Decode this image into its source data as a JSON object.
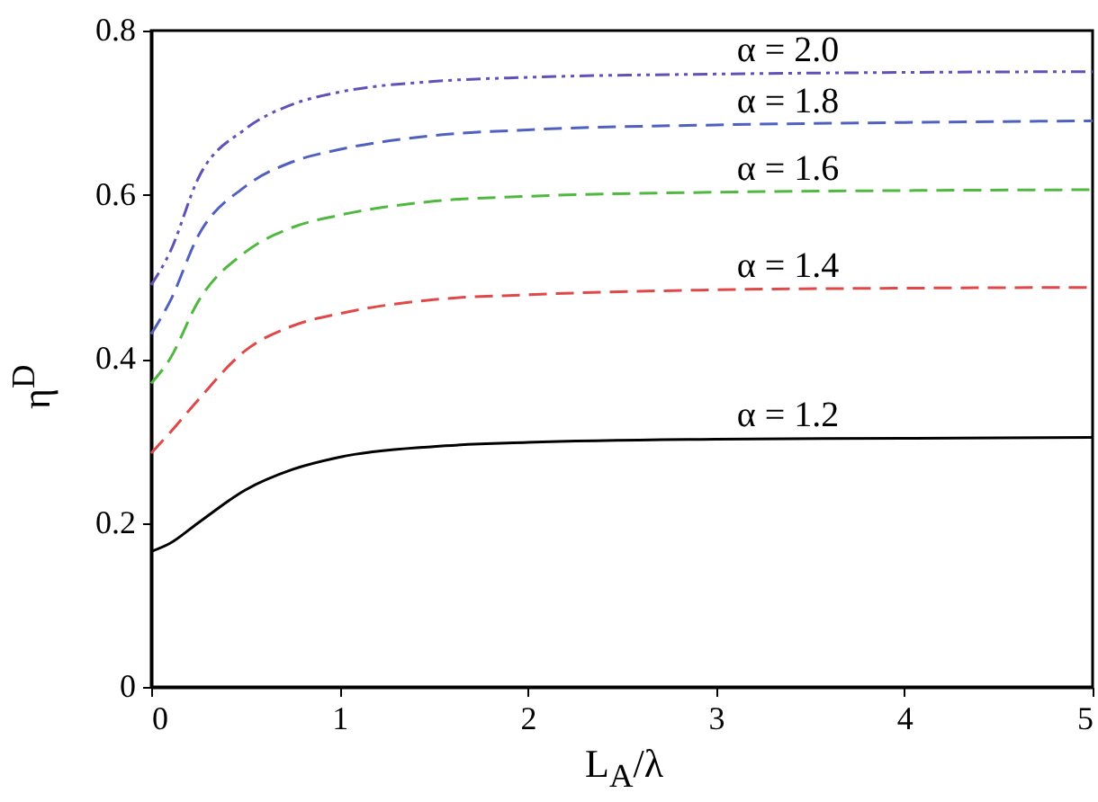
{
  "chart_data": {
    "type": "line",
    "xlabel": "L$_{A}$/λ",
    "ylabel": "η$^{D}$",
    "xlim": [
      0,
      5
    ],
    "xticks": [
      0,
      1,
      2,
      3,
      4,
      5
    ],
    "ylim": [
      0,
      0.8
    ],
    "yticks": [
      0,
      0.2,
      0.4,
      0.6,
      0.8
    ],
    "grid": false,
    "marker": "none",
    "x": [
      0,
      0.1,
      0.25,
      0.5,
      0.75,
      1,
      1.5,
      2,
      3,
      4,
      5
    ],
    "series": [
      {
        "name": "α = 1.2",
        "color": "#000000",
        "line_style": "solid",
        "values": [
          0.165,
          0.175,
          0.2,
          0.24,
          0.265,
          0.28,
          0.293,
          0.298,
          0.302,
          0.303,
          0.304
        ]
      },
      {
        "name": "α = 1.4",
        "color": "#e04848",
        "line_style": "dashed",
        "values": [
          0.285,
          0.31,
          0.35,
          0.41,
          0.44,
          0.455,
          0.472,
          0.478,
          0.484,
          0.486,
          0.487
        ]
      },
      {
        "name": "α = 1.6",
        "color": "#50b840",
        "line_style": "dashed",
        "values": [
          0.37,
          0.4,
          0.47,
          0.53,
          0.56,
          0.575,
          0.592,
          0.598,
          0.603,
          0.605,
          0.606
        ]
      },
      {
        "name": "α = 1.8",
        "color": "#5060c0",
        "line_style": "dashed",
        "values": [
          0.43,
          0.47,
          0.55,
          0.61,
          0.64,
          0.655,
          0.672,
          0.679,
          0.685,
          0.688,
          0.69
        ]
      },
      {
        "name": "α = 2.0",
        "color": "#6050b8",
        "line_style": "dotted",
        "values": [
          0.49,
          0.53,
          0.62,
          0.68,
          0.71,
          0.725,
          0.738,
          0.743,
          0.747,
          0.749,
          0.75
        ]
      }
    ]
  }
}
